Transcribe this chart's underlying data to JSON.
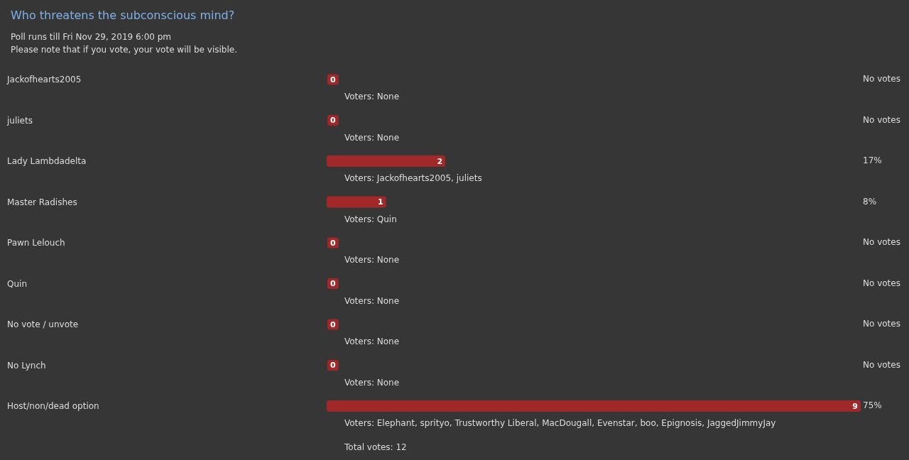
{
  "chart_data": {
    "type": "bar",
    "orientation": "horizontal",
    "title": "Who threatens the subconscious mind?",
    "subtitle": "Poll runs till Fri Nov 29, 2019 6:00 pm\nPlease note that if you vote, your vote will be visible.",
    "categories": [
      "Jackofhearts2005",
      "juliets",
      "Lady Lambdadelta",
      "Master Radishes",
      "Pawn Lelouch",
      "Quin",
      "No vote / unvote",
      "No Lynch",
      "Host/non/dead option"
    ],
    "values": [
      0,
      0,
      2,
      1,
      0,
      0,
      0,
      0,
      9
    ],
    "color": "#a02828",
    "xlim": [
      0,
      9
    ],
    "data_labels": true,
    "annotations": [
      "No votes",
      "No votes",
      "17%",
      "8%",
      "No votes",
      "No votes",
      "No votes",
      "No votes",
      "75%",
      "Voters: None",
      "Voters: None",
      "Voters: Jackofhearts2005, juliets",
      "Voters: Quin",
      "Voters: None",
      "Voters: None",
      "Voters: None",
      "Voters: None",
      "Voters: Elephant, sprityo, Trustworthy Liberal, MacDougall, Evenstar, boo, Epignosis, JaggedJimmyJay",
      "Total votes: 12"
    ]
  }
}
